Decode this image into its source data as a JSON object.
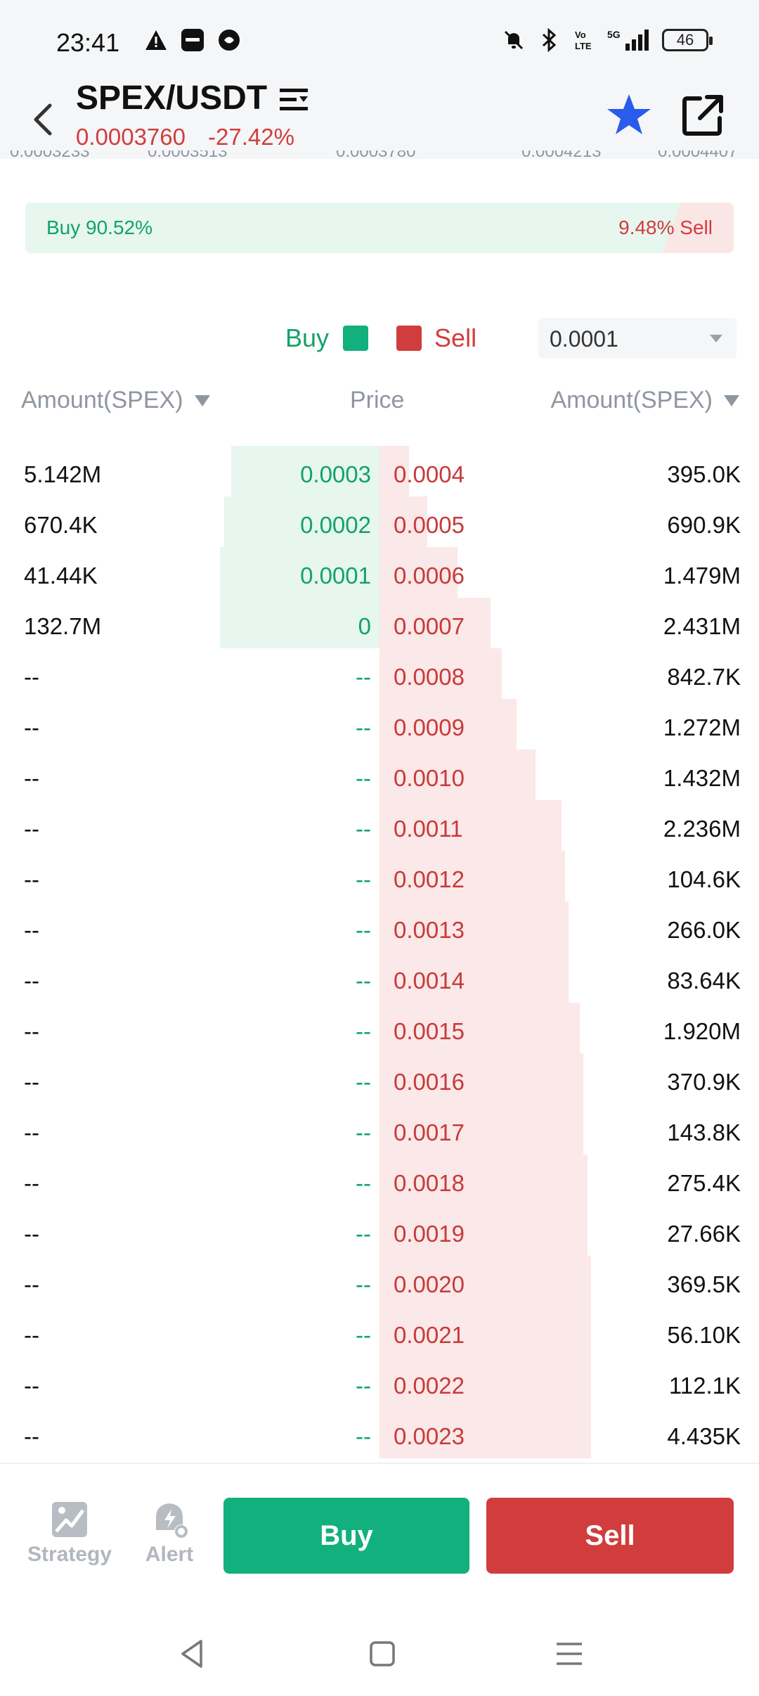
{
  "status_bar": {
    "time": "23:41",
    "left_icons": [
      "warning-icon",
      "paytm-icon",
      "chat-bubble-icon"
    ],
    "right_icons": [
      "bell-off-icon",
      "bluetooth-icon",
      "volte-icon",
      "signal-5g-icon"
    ],
    "battery": "46"
  },
  "header": {
    "title": "SPEX/USDT",
    "price": "0.0003760",
    "change": "-27.42%"
  },
  "ratio": {
    "buy_label": "Buy 90.52%",
    "sell_label": "9.48% Sell",
    "buy_percent": 90.52
  },
  "legend": {
    "buy": "Buy",
    "sell": "Sell"
  },
  "precision": {
    "value": "0.0001"
  },
  "columns": {
    "left": "Amount(SPEX)",
    "mid": "Price",
    "right": "Amount(SPEX)"
  },
  "orderbook": [
    {
      "bid_amt": "5.142M",
      "bid_price": "0.0003",
      "ask_price": "0.0004",
      "ask_amt": "395.0K",
      "bid_depth": 0.39,
      "ask_depth": 0.06
    },
    {
      "bid_amt": "670.4K",
      "bid_price": "0.0002",
      "ask_price": "0.0005",
      "ask_amt": "690.9K",
      "bid_depth": 0.41,
      "ask_depth": 0.11
    },
    {
      "bid_amt": "41.44K",
      "bid_price": "0.0001",
      "ask_price": "0.0006",
      "ask_amt": "1.479M",
      "bid_depth": 0.42,
      "ask_depth": 0.19
    },
    {
      "bid_amt": "132.7M",
      "bid_price": "0",
      "ask_price": "0.0007",
      "ask_amt": "2.431M",
      "bid_depth": 0.42,
      "ask_depth": 0.28
    },
    {
      "bid_amt": "--",
      "bid_price": "--",
      "ask_price": "0.0008",
      "ask_amt": "842.7K",
      "bid_depth": 0,
      "ask_depth": 0.31
    },
    {
      "bid_amt": "--",
      "bid_price": "--",
      "ask_price": "0.0009",
      "ask_amt": "1.272M",
      "bid_depth": 0,
      "ask_depth": 0.35
    },
    {
      "bid_amt": "--",
      "bid_price": "--",
      "ask_price": "0.0010",
      "ask_amt": "1.432M",
      "bid_depth": 0,
      "ask_depth": 0.4
    },
    {
      "bid_amt": "--",
      "bid_price": "--",
      "ask_price": "0.0011",
      "ask_amt": "2.236M",
      "bid_depth": 0,
      "ask_depth": 0.47
    },
    {
      "bid_amt": "--",
      "bid_price": "--",
      "ask_price": "0.0012",
      "ask_amt": "104.6K",
      "bid_depth": 0,
      "ask_depth": 0.48
    },
    {
      "bid_amt": "--",
      "bid_price": "--",
      "ask_price": "0.0013",
      "ask_amt": "266.0K",
      "bid_depth": 0,
      "ask_depth": 0.49
    },
    {
      "bid_amt": "--",
      "bid_price": "--",
      "ask_price": "0.0014",
      "ask_amt": "83.64K",
      "bid_depth": 0,
      "ask_depth": 0.49
    },
    {
      "bid_amt": "--",
      "bid_price": "--",
      "ask_price": "0.0015",
      "ask_amt": "1.920M",
      "bid_depth": 0,
      "ask_depth": 0.52
    },
    {
      "bid_amt": "--",
      "bid_price": "--",
      "ask_price": "0.0016",
      "ask_amt": "370.9K",
      "bid_depth": 0,
      "ask_depth": 0.53
    },
    {
      "bid_amt": "--",
      "bid_price": "--",
      "ask_price": "0.0017",
      "ask_amt": "143.8K",
      "bid_depth": 0,
      "ask_depth": 0.53
    },
    {
      "bid_amt": "--",
      "bid_price": "--",
      "ask_price": "0.0018",
      "ask_amt": "275.4K",
      "bid_depth": 0,
      "ask_depth": 0.54
    },
    {
      "bid_amt": "--",
      "bid_price": "--",
      "ask_price": "0.0019",
      "ask_amt": "27.66K",
      "bid_depth": 0,
      "ask_depth": 0.54
    },
    {
      "bid_amt": "--",
      "bid_price": "--",
      "ask_price": "0.0020",
      "ask_amt": "369.5K",
      "bid_depth": 0,
      "ask_depth": 0.55
    },
    {
      "bid_amt": "--",
      "bid_price": "--",
      "ask_price": "0.0021",
      "ask_amt": "56.10K",
      "bid_depth": 0,
      "ask_depth": 0.55
    },
    {
      "bid_amt": "--",
      "bid_price": "--",
      "ask_price": "0.0022",
      "ask_amt": "112.1K",
      "bid_depth": 0,
      "ask_depth": 0.55
    },
    {
      "bid_amt": "--",
      "bid_price": "--",
      "ask_price": "0.0023",
      "ask_amt": "4.435K",
      "bid_depth": 0,
      "ask_depth": 0.55
    }
  ],
  "bottom": {
    "strategy": "Strategy",
    "alert": "Alert",
    "buy": "Buy",
    "sell": "Sell"
  },
  "colors": {
    "buy": "#12b07c",
    "sell": "#d13d3d",
    "buy_bg": "#e7f6ef",
    "sell_bg": "#fbe8e8"
  }
}
